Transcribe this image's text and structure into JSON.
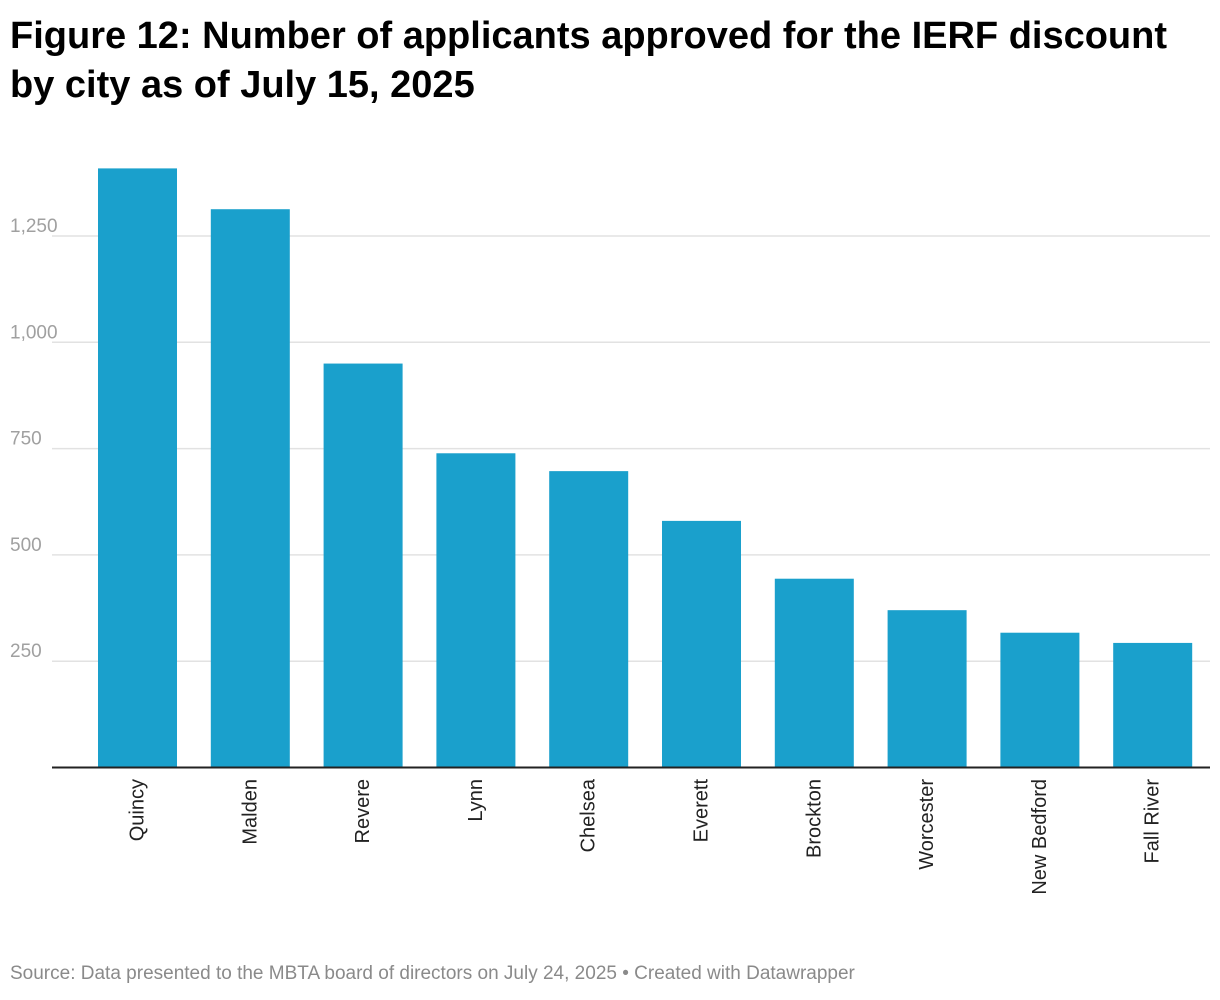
{
  "chart_data": {
    "type": "bar",
    "title": "Figure 12: Number of applicants approved for the IERF discount by city as of July 15, 2025",
    "xlabel": "",
    "ylabel": "",
    "categories": [
      "Quincy",
      "Malden",
      "Revere",
      "Lynn",
      "Chelsea",
      "Everett",
      "Brockton",
      "Worcester",
      "New Bedford",
      "Fall River"
    ],
    "values": [
      1409,
      1313,
      950,
      739,
      697,
      580,
      444,
      370,
      317,
      293
    ],
    "ylim": [
      0,
      1450
    ],
    "yticks": [
      250,
      500,
      750,
      1000,
      1250
    ],
    "ytick_labels": [
      "250",
      "500",
      "750",
      "1,000",
      "1,250"
    ],
    "grid": true,
    "bar_color": "#1aa0cc"
  },
  "footer": {
    "source_label": "Source:",
    "source_text": "Data presented to the MBTA board of directors on July 24, 2025",
    "separator": "•",
    "credit": "Created with Datawrapper"
  }
}
